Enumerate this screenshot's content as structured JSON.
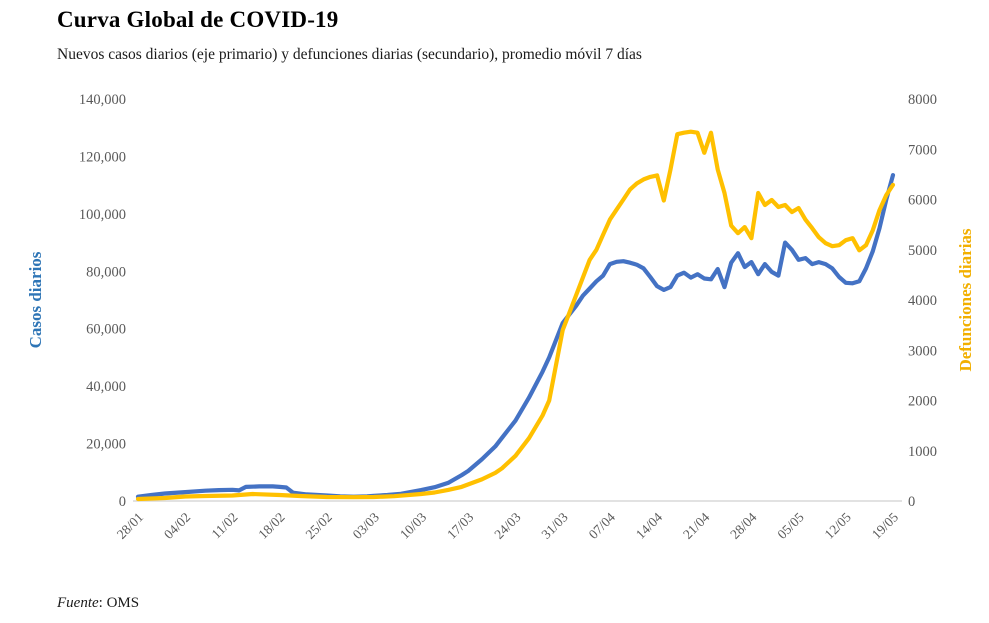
{
  "header": {
    "title": "Curva Global de COVID-19",
    "subtitle": "Nuevos casos diarios (eje primario) y defunciones diarias (secundario), promedio móvil 7 días"
  },
  "footer": {
    "source_label": "Fuente",
    "source_separator": ": ",
    "source_value": "OMS"
  },
  "colors": {
    "cases_line": "#4472C4",
    "deaths_line": "#FFC000",
    "cases_axis_title": "#2E75B6",
    "deaths_axis_title": "#F2AF00",
    "axis_line": "#D9D9D9",
    "tick_text": "#595959"
  },
  "chart_data": {
    "type": "line",
    "title": "Curva Global de COVID-19",
    "subtitle": "Nuevos casos diarios (eje primario) y defunciones diarias (secundario), promedio móvil 7 días",
    "source": "Fuente: OMS",
    "grid": false,
    "legend": "none",
    "x_axis": {
      "tick_labels": [
        "28/01",
        "04/02",
        "11/02",
        "18/02",
        "25/02",
        "03/03",
        "10/03",
        "17/03",
        "24/03",
        "31/03",
        "07/04",
        "14/04",
        "21/04",
        "28/04",
        "05/05",
        "12/05",
        "19/05"
      ],
      "tick_days": [
        0,
        7,
        14,
        21,
        28,
        35,
        42,
        49,
        56,
        63,
        70,
        77,
        84,
        91,
        98,
        105,
        112
      ],
      "range_days": [
        0,
        112
      ]
    },
    "left_axis": {
      "label": "Casos diarios",
      "min": 0,
      "max": 140000,
      "step": 20000,
      "tick_labels": [
        "0",
        "20,000",
        "40,000",
        "60,000",
        "80,000",
        "100,000",
        "120,000",
        "140,000"
      ]
    },
    "right_axis": {
      "label": "Defunciones diarias",
      "min": 0,
      "max": 8000,
      "step": 1000,
      "tick_labels": [
        "0",
        "1000",
        "2000",
        "3000",
        "4000",
        "5000",
        "6000",
        "7000",
        "8000"
      ]
    },
    "series": [
      {
        "name": "Casos diarios",
        "axis": "left",
        "color": "#4472C4",
        "points": [
          [
            0,
            1500
          ],
          [
            2,
            2100
          ],
          [
            4,
            2600
          ],
          [
            7,
            3100
          ],
          [
            10,
            3600
          ],
          [
            12,
            3800
          ],
          [
            14,
            3900
          ],
          [
            15,
            3700
          ],
          [
            16,
            4900
          ],
          [
            18,
            5100
          ],
          [
            20,
            5100
          ],
          [
            21,
            4900
          ],
          [
            22,
            4700
          ],
          [
            23,
            2900
          ],
          [
            25,
            2300
          ],
          [
            28,
            1900
          ],
          [
            30,
            1600
          ],
          [
            32,
            1500
          ],
          [
            34,
            1600
          ],
          [
            35,
            1800
          ],
          [
            37,
            2100
          ],
          [
            39,
            2500
          ],
          [
            42,
            3800
          ],
          [
            44,
            4800
          ],
          [
            46,
            6300
          ],
          [
            48,
            9000
          ],
          [
            49,
            10500
          ],
          [
            51,
            14500
          ],
          [
            53,
            19000
          ],
          [
            54,
            22000
          ],
          [
            56,
            28000
          ],
          [
            58,
            36000
          ],
          [
            60,
            45000
          ],
          [
            61,
            50000
          ],
          [
            63,
            62000
          ],
          [
            65,
            68000
          ],
          [
            66,
            71500
          ],
          [
            67,
            74000
          ],
          [
            68,
            76500
          ],
          [
            69,
            78500
          ],
          [
            70,
            82500
          ],
          [
            71,
            83300
          ],
          [
            72,
            83500
          ],
          [
            73,
            83000
          ],
          [
            74,
            82300
          ],
          [
            75,
            81000
          ],
          [
            76,
            78000
          ],
          [
            77,
            74800
          ],
          [
            78,
            73500
          ],
          [
            79,
            74500
          ],
          [
            80,
            78500
          ],
          [
            81,
            79500
          ],
          [
            82,
            77800
          ],
          [
            83,
            79000
          ],
          [
            84,
            77500
          ],
          [
            85,
            77200
          ],
          [
            86,
            80800
          ],
          [
            87,
            74500
          ],
          [
            88,
            83000
          ],
          [
            89,
            86300
          ],
          [
            90,
            81500
          ],
          [
            91,
            83200
          ],
          [
            92,
            79000
          ],
          [
            93,
            82500
          ],
          [
            94,
            79800
          ],
          [
            95,
            78500
          ],
          [
            96,
            90000
          ],
          [
            97,
            87500
          ],
          [
            98,
            84000
          ],
          [
            99,
            84600
          ],
          [
            100,
            82500
          ],
          [
            101,
            83200
          ],
          [
            102,
            82500
          ],
          [
            103,
            81000
          ],
          [
            104,
            78000
          ],
          [
            105,
            76000
          ],
          [
            106,
            75800
          ],
          [
            107,
            76500
          ],
          [
            108,
            81000
          ],
          [
            109,
            87000
          ],
          [
            110,
            95000
          ],
          [
            111,
            105000
          ],
          [
            112,
            113500
          ]
        ]
      },
      {
        "name": "Defunciones diarias",
        "axis": "right",
        "color": "#FFC000",
        "points": [
          [
            0,
            40
          ],
          [
            4,
            60
          ],
          [
            7,
            90
          ],
          [
            10,
            100
          ],
          [
            14,
            110
          ],
          [
            17,
            140
          ],
          [
            21,
            120
          ],
          [
            24,
            100
          ],
          [
            28,
            80
          ],
          [
            32,
            75
          ],
          [
            35,
            80
          ],
          [
            38,
            95
          ],
          [
            42,
            140
          ],
          [
            44,
            170
          ],
          [
            46,
            220
          ],
          [
            48,
            280
          ],
          [
            49,
            330
          ],
          [
            51,
            430
          ],
          [
            53,
            560
          ],
          [
            54,
            650
          ],
          [
            56,
            900
          ],
          [
            58,
            1250
          ],
          [
            60,
            1700
          ],
          [
            61,
            2000
          ],
          [
            63,
            3400
          ],
          [
            65,
            4100
          ],
          [
            67,
            4800
          ],
          [
            68,
            5000
          ],
          [
            69,
            5300
          ],
          [
            70,
            5600
          ],
          [
            71,
            5800
          ],
          [
            72,
            6000
          ],
          [
            73,
            6200
          ],
          [
            74,
            6320
          ],
          [
            75,
            6400
          ],
          [
            76,
            6450
          ],
          [
            77,
            6480
          ],
          [
            78,
            5980
          ],
          [
            79,
            6600
          ],
          [
            80,
            7300
          ],
          [
            81,
            7330
          ],
          [
            82,
            7350
          ],
          [
            83,
            7330
          ],
          [
            84,
            6930
          ],
          [
            85,
            7330
          ],
          [
            86,
            6600
          ],
          [
            87,
            6130
          ],
          [
            88,
            5480
          ],
          [
            89,
            5330
          ],
          [
            90,
            5450
          ],
          [
            91,
            5230
          ],
          [
            92,
            6130
          ],
          [
            93,
            5890
          ],
          [
            94,
            5990
          ],
          [
            95,
            5850
          ],
          [
            96,
            5890
          ],
          [
            97,
            5750
          ],
          [
            98,
            5830
          ],
          [
            99,
            5600
          ],
          [
            100,
            5430
          ],
          [
            101,
            5250
          ],
          [
            102,
            5130
          ],
          [
            103,
            5070
          ],
          [
            104,
            5090
          ],
          [
            105,
            5190
          ],
          [
            106,
            5230
          ],
          [
            107,
            4990
          ],
          [
            108,
            5090
          ],
          [
            109,
            5390
          ],
          [
            110,
            5790
          ],
          [
            111,
            6090
          ],
          [
            112,
            6290
          ]
        ]
      }
    ]
  }
}
